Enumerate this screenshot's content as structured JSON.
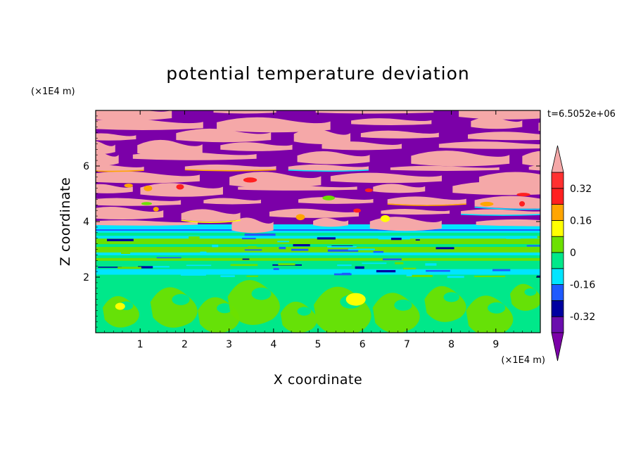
{
  "chart_data": {
    "type": "heatmap",
    "title": "potential temperature deviation",
    "xlabel": "X coordinate",
    "ylabel": "Z coordinate",
    "x_unit": "(×1E4 m)",
    "z_unit": "(×1E4 m)",
    "time_label": "t=6.5052e+06",
    "xlim": [
      0,
      10
    ],
    "ylim": [
      0,
      8
    ],
    "x_ticks": [
      1,
      2,
      3,
      4,
      5,
      6,
      7,
      8,
      9
    ],
    "y_ticks": [
      2,
      4,
      6
    ],
    "colorbar": {
      "levels": [
        -0.4,
        -0.32,
        -0.24,
        -0.16,
        -0.08,
        0,
        0.08,
        0.16,
        0.24,
        0.32,
        0.4
      ],
      "tick_labels": [
        "-0.32",
        "-0.16",
        "0",
        "0.16",
        "0.32"
      ],
      "tick_values": [
        -0.32,
        -0.16,
        0,
        0.16,
        0.32
      ],
      "colors": [
        "#7b00a8",
        "#6a0dad",
        "#0000a0",
        "#1e5aff",
        "#00e5ff",
        "#00e88a",
        "#6ce000",
        "#ffff00",
        "#ffa500",
        "#ff2020",
        "#ff3030",
        "#f5a8a8"
      ],
      "under_color": "#7b00a8",
      "over_color": "#f5a8a8"
    },
    "bands": [
      {
        "z_range": [
          0,
          2.0
        ],
        "pattern": "eddies",
        "colors": [
          "#00e88a",
          "#6ce000"
        ]
      },
      {
        "z_range": [
          2.0,
          3.6
        ],
        "pattern": "horizontal-streaks",
        "colors": [
          "#00e88a",
          "#6ce000",
          "#00e5ff"
        ]
      },
      {
        "z_range": [
          3.6,
          3.9
        ],
        "pattern": "horizontal-streaks",
        "colors": [
          "#00e5ff",
          "#1e5aff"
        ]
      },
      {
        "z_range": [
          3.9,
          8.0
        ],
        "pattern": "layered-strata",
        "colors": [
          "#7b00a8",
          "#f5a8a8"
        ]
      }
    ]
  }
}
